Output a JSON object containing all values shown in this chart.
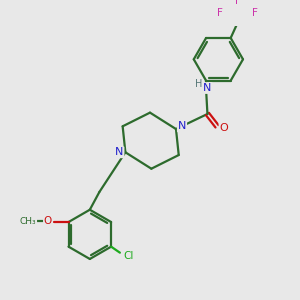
{
  "background_color": "#e8e8e8",
  "bond_color": "#2d6b2d",
  "n_color": "#2020cc",
  "o_color": "#cc1111",
  "cl_color": "#1eaa1e",
  "f_color": "#cc33aa",
  "h_color": "#557777",
  "linewidth": 1.6,
  "figsize": [
    3.0,
    3.0
  ],
  "dpi": 100,
  "xlim": [
    0,
    10
  ],
  "ylim": [
    0,
    10
  ]
}
